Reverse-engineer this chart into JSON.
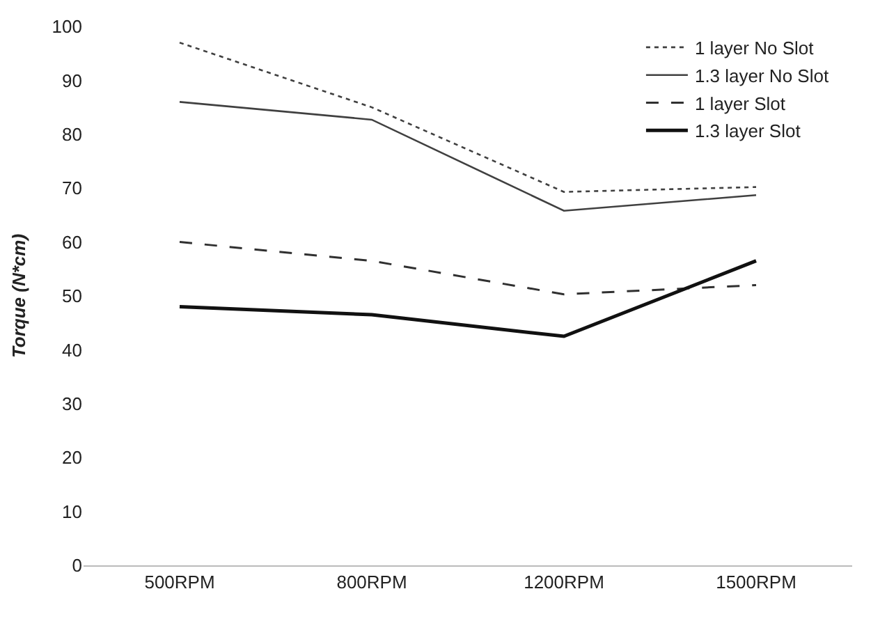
{
  "chart_data": {
    "type": "line",
    "ylabel": "Torque (N*cm)",
    "categories": [
      "500RPM",
      "800RPM",
      "1200RPM",
      "1500RPM"
    ],
    "series": [
      {
        "name": "1 layer No Slot",
        "color": "#404040",
        "line_style": "dotted",
        "values": [
          97,
          85,
          69.3,
          70.2
        ]
      },
      {
        "name": "1.3 layer No Slot",
        "color": "#404040",
        "line_style": "solid",
        "values": [
          86,
          82.7,
          65.8,
          68.7
        ]
      },
      {
        "name": "1 layer Slot",
        "color": "#303030",
        "line_style": "dashed",
        "values": [
          60,
          56.5,
          50.3,
          52
        ]
      },
      {
        "name": "1.3 layer Slot",
        "color": "#111111",
        "line_style": "solid",
        "values": [
          48,
          46.5,
          42.5,
          56.5
        ]
      }
    ],
    "ylim": [
      0,
      100
    ],
    "yticks": [
      0,
      10,
      20,
      30,
      40,
      50,
      60,
      70,
      80,
      90,
      100
    ],
    "grid": false,
    "legend": "top right",
    "marker": "none"
  }
}
